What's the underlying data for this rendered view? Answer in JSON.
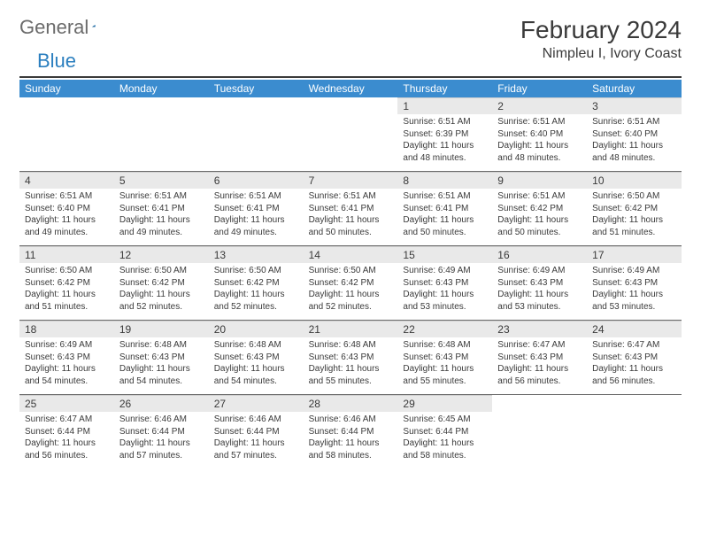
{
  "logo": {
    "textA": "General",
    "textB": "Blue",
    "colorA": "#6b6b6b",
    "colorB": "#2b7fbf"
  },
  "title": "February 2024",
  "location": "Nimpleu I, Ivory Coast",
  "header_bg": "#3b8ccf",
  "header_fg": "#ffffff",
  "daynum_bg": "#e9e9e9",
  "text_color": "#3a3a3a",
  "rule_color": "#3a3a3a",
  "day_labels": [
    "Sunday",
    "Monday",
    "Tuesday",
    "Wednesday",
    "Thursday",
    "Friday",
    "Saturday"
  ],
  "weeks": [
    [
      null,
      null,
      null,
      null,
      {
        "n": "1",
        "sunrise": "6:51 AM",
        "sunset": "6:39 PM",
        "daylight": "11 hours and 48 minutes."
      },
      {
        "n": "2",
        "sunrise": "6:51 AM",
        "sunset": "6:40 PM",
        "daylight": "11 hours and 48 minutes."
      },
      {
        "n": "3",
        "sunrise": "6:51 AM",
        "sunset": "6:40 PM",
        "daylight": "11 hours and 48 minutes."
      }
    ],
    [
      {
        "n": "4",
        "sunrise": "6:51 AM",
        "sunset": "6:40 PM",
        "daylight": "11 hours and 49 minutes."
      },
      {
        "n": "5",
        "sunrise": "6:51 AM",
        "sunset": "6:41 PM",
        "daylight": "11 hours and 49 minutes."
      },
      {
        "n": "6",
        "sunrise": "6:51 AM",
        "sunset": "6:41 PM",
        "daylight": "11 hours and 49 minutes."
      },
      {
        "n": "7",
        "sunrise": "6:51 AM",
        "sunset": "6:41 PM",
        "daylight": "11 hours and 50 minutes."
      },
      {
        "n": "8",
        "sunrise": "6:51 AM",
        "sunset": "6:41 PM",
        "daylight": "11 hours and 50 minutes."
      },
      {
        "n": "9",
        "sunrise": "6:51 AM",
        "sunset": "6:42 PM",
        "daylight": "11 hours and 50 minutes."
      },
      {
        "n": "10",
        "sunrise": "6:50 AM",
        "sunset": "6:42 PM",
        "daylight": "11 hours and 51 minutes."
      }
    ],
    [
      {
        "n": "11",
        "sunrise": "6:50 AM",
        "sunset": "6:42 PM",
        "daylight": "11 hours and 51 minutes."
      },
      {
        "n": "12",
        "sunrise": "6:50 AM",
        "sunset": "6:42 PM",
        "daylight": "11 hours and 52 minutes."
      },
      {
        "n": "13",
        "sunrise": "6:50 AM",
        "sunset": "6:42 PM",
        "daylight": "11 hours and 52 minutes."
      },
      {
        "n": "14",
        "sunrise": "6:50 AM",
        "sunset": "6:42 PM",
        "daylight": "11 hours and 52 minutes."
      },
      {
        "n": "15",
        "sunrise": "6:49 AM",
        "sunset": "6:43 PM",
        "daylight": "11 hours and 53 minutes."
      },
      {
        "n": "16",
        "sunrise": "6:49 AM",
        "sunset": "6:43 PM",
        "daylight": "11 hours and 53 minutes."
      },
      {
        "n": "17",
        "sunrise": "6:49 AM",
        "sunset": "6:43 PM",
        "daylight": "11 hours and 53 minutes."
      }
    ],
    [
      {
        "n": "18",
        "sunrise": "6:49 AM",
        "sunset": "6:43 PM",
        "daylight": "11 hours and 54 minutes."
      },
      {
        "n": "19",
        "sunrise": "6:48 AM",
        "sunset": "6:43 PM",
        "daylight": "11 hours and 54 minutes."
      },
      {
        "n": "20",
        "sunrise": "6:48 AM",
        "sunset": "6:43 PM",
        "daylight": "11 hours and 54 minutes."
      },
      {
        "n": "21",
        "sunrise": "6:48 AM",
        "sunset": "6:43 PM",
        "daylight": "11 hours and 55 minutes."
      },
      {
        "n": "22",
        "sunrise": "6:48 AM",
        "sunset": "6:43 PM",
        "daylight": "11 hours and 55 minutes."
      },
      {
        "n": "23",
        "sunrise": "6:47 AM",
        "sunset": "6:43 PM",
        "daylight": "11 hours and 56 minutes."
      },
      {
        "n": "24",
        "sunrise": "6:47 AM",
        "sunset": "6:43 PM",
        "daylight": "11 hours and 56 minutes."
      }
    ],
    [
      {
        "n": "25",
        "sunrise": "6:47 AM",
        "sunset": "6:44 PM",
        "daylight": "11 hours and 56 minutes."
      },
      {
        "n": "26",
        "sunrise": "6:46 AM",
        "sunset": "6:44 PM",
        "daylight": "11 hours and 57 minutes."
      },
      {
        "n": "27",
        "sunrise": "6:46 AM",
        "sunset": "6:44 PM",
        "daylight": "11 hours and 57 minutes."
      },
      {
        "n": "28",
        "sunrise": "6:46 AM",
        "sunset": "6:44 PM",
        "daylight": "11 hours and 58 minutes."
      },
      {
        "n": "29",
        "sunrise": "6:45 AM",
        "sunset": "6:44 PM",
        "daylight": "11 hours and 58 minutes."
      },
      null,
      null
    ]
  ],
  "labels": {
    "sunrise": "Sunrise:",
    "sunset": "Sunset:",
    "daylight": "Daylight:"
  }
}
